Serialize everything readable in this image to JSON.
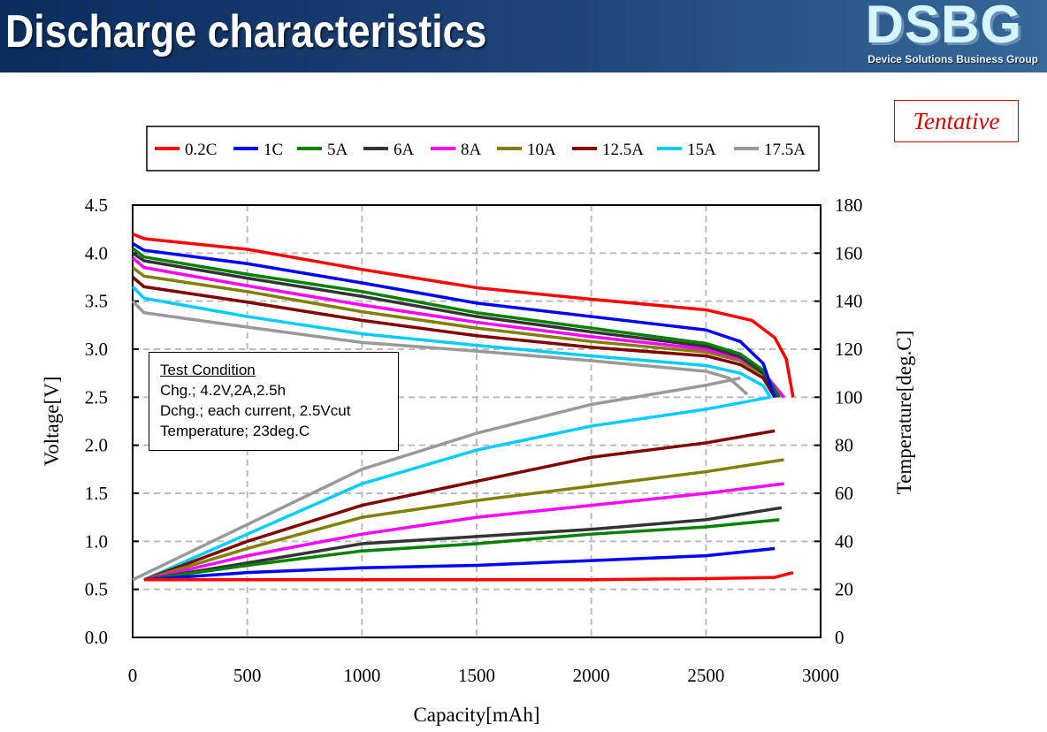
{
  "header": {
    "title": "Discharge characteristics",
    "logo": "DSBG",
    "logo_subtitle": "Device Solutions Business Group"
  },
  "badge": "Tentative",
  "test_condition": {
    "title": "Test Condition",
    "lines": [
      "Chg.; 4.2V,2A,2.5h",
      "Dchg.; each current, 2.5Vcut",
      "Temperature; 23deg.C"
    ]
  },
  "chart_data": {
    "type": "line",
    "xlabel": "Capacity[mAh]",
    "ylabel": "Voltage[V]",
    "y2label": "Temperature[deg.C]",
    "xlim": [
      0,
      3000
    ],
    "ylim": [
      0,
      4.5
    ],
    "y2lim": [
      0,
      180
    ],
    "xticks": [
      "0",
      "500",
      "1000",
      "1500",
      "2000",
      "2500",
      "3000"
    ],
    "yticks": [
      "0.0",
      "0.5",
      "1.0",
      "1.5",
      "2.0",
      "2.5",
      "3.0",
      "3.5",
      "4.0",
      "4.5"
    ],
    "y2ticks": [
      "0",
      "20",
      "40",
      "60",
      "80",
      "100",
      "120",
      "140",
      "160",
      "180"
    ],
    "grid": true,
    "legend_position": "top",
    "series": [
      {
        "name": "0.2C",
        "color": "#ff0000",
        "voltage": [
          [
            0,
            4.2
          ],
          [
            50,
            4.15
          ],
          [
            500,
            4.04
          ],
          [
            1000,
            3.83
          ],
          [
            1500,
            3.64
          ],
          [
            2000,
            3.52
          ],
          [
            2500,
            3.41
          ],
          [
            2700,
            3.3
          ],
          [
            2800,
            3.12
          ],
          [
            2850,
            2.9
          ],
          [
            2880,
            2.5
          ]
        ],
        "temperature": [
          [
            50,
            24
          ],
          [
            500,
            24
          ],
          [
            1000,
            24
          ],
          [
            2000,
            24
          ],
          [
            2500,
            24.5
          ],
          [
            2800,
            25
          ],
          [
            2880,
            27
          ]
        ]
      },
      {
        "name": "1C",
        "color": "#0000ff",
        "voltage": [
          [
            0,
            4.1
          ],
          [
            50,
            4.03
          ],
          [
            500,
            3.89
          ],
          [
            1000,
            3.69
          ],
          [
            1500,
            3.48
          ],
          [
            2000,
            3.34
          ],
          [
            2500,
            3.2
          ],
          [
            2650,
            3.08
          ],
          [
            2750,
            2.85
          ],
          [
            2800,
            2.5
          ]
        ],
        "temperature": [
          [
            50,
            24
          ],
          [
            500,
            27
          ],
          [
            1000,
            29
          ],
          [
            1500,
            30
          ],
          [
            2000,
            32
          ],
          [
            2500,
            34
          ],
          [
            2800,
            37
          ]
        ]
      },
      {
        "name": "5A",
        "color": "#008000",
        "voltage": [
          [
            0,
            4.05
          ],
          [
            50,
            3.96
          ],
          [
            500,
            3.78
          ],
          [
            1000,
            3.6
          ],
          [
            1500,
            3.38
          ],
          [
            2000,
            3.22
          ],
          [
            2500,
            3.06
          ],
          [
            2650,
            2.95
          ],
          [
            2750,
            2.78
          ],
          [
            2820,
            2.5
          ]
        ],
        "temperature": [
          [
            50,
            24
          ],
          [
            500,
            30
          ],
          [
            1000,
            36
          ],
          [
            1500,
            39
          ],
          [
            2000,
            43
          ],
          [
            2500,
            46
          ],
          [
            2820,
            49
          ]
        ]
      },
      {
        "name": "6A",
        "color": "#333333",
        "voltage": [
          [
            0,
            4.0
          ],
          [
            50,
            3.92
          ],
          [
            500,
            3.74
          ],
          [
            1000,
            3.55
          ],
          [
            1500,
            3.34
          ],
          [
            2000,
            3.18
          ],
          [
            2500,
            3.03
          ],
          [
            2650,
            2.92
          ],
          [
            2750,
            2.75
          ],
          [
            2810,
            2.5
          ]
        ],
        "temperature": [
          [
            50,
            24
          ],
          [
            500,
            31
          ],
          [
            1000,
            39
          ],
          [
            1500,
            42
          ],
          [
            2000,
            45
          ],
          [
            2500,
            49
          ],
          [
            2830,
            54
          ]
        ]
      },
      {
        "name": "8A",
        "color": "#ff00ff",
        "voltage": [
          [
            0,
            3.95
          ],
          [
            50,
            3.85
          ],
          [
            500,
            3.66
          ],
          [
            1000,
            3.46
          ],
          [
            1500,
            3.28
          ],
          [
            2000,
            3.13
          ],
          [
            2500,
            3.0
          ],
          [
            2650,
            2.9
          ],
          [
            2750,
            2.76
          ],
          [
            2840,
            2.5
          ]
        ],
        "temperature": [
          [
            50,
            24
          ],
          [
            500,
            34
          ],
          [
            1000,
            43
          ],
          [
            1500,
            50
          ],
          [
            2000,
            55
          ],
          [
            2500,
            60
          ],
          [
            2840,
            64
          ]
        ]
      },
      {
        "name": "10A",
        "color": "#808000",
        "voltage": [
          [
            0,
            3.85
          ],
          [
            50,
            3.76
          ],
          [
            500,
            3.6
          ],
          [
            1000,
            3.39
          ],
          [
            1500,
            3.22
          ],
          [
            2000,
            3.08
          ],
          [
            2500,
            2.97
          ],
          [
            2650,
            2.88
          ],
          [
            2750,
            2.74
          ],
          [
            2840,
            2.5
          ]
        ],
        "temperature": [
          [
            50,
            24
          ],
          [
            500,
            37
          ],
          [
            1000,
            50
          ],
          [
            1500,
            57
          ],
          [
            2000,
            63
          ],
          [
            2500,
            69
          ],
          [
            2840,
            74
          ]
        ]
      },
      {
        "name": "12.5A",
        "color": "#800000",
        "voltage": [
          [
            0,
            3.75
          ],
          [
            50,
            3.65
          ],
          [
            500,
            3.49
          ],
          [
            1000,
            3.3
          ],
          [
            1500,
            3.14
          ],
          [
            2000,
            3.02
          ],
          [
            2500,
            2.93
          ],
          [
            2650,
            2.84
          ],
          [
            2750,
            2.7
          ],
          [
            2800,
            2.5
          ]
        ],
        "temperature": [
          [
            50,
            24
          ],
          [
            500,
            40
          ],
          [
            1000,
            55
          ],
          [
            1500,
            65
          ],
          [
            2000,
            75
          ],
          [
            2500,
            81
          ],
          [
            2800,
            86
          ]
        ]
      },
      {
        "name": "15A",
        "color": "#00ccff",
        "voltage": [
          [
            0,
            3.65
          ],
          [
            50,
            3.53
          ],
          [
            500,
            3.34
          ],
          [
            1000,
            3.16
          ],
          [
            1500,
            3.04
          ],
          [
            2000,
            2.93
          ],
          [
            2500,
            2.83
          ],
          [
            2650,
            2.75
          ],
          [
            2750,
            2.62
          ],
          [
            2780,
            2.5
          ]
        ],
        "temperature": [
          [
            50,
            24
          ],
          [
            500,
            43
          ],
          [
            1000,
            64
          ],
          [
            1500,
            78
          ],
          [
            2000,
            88
          ],
          [
            2500,
            95
          ],
          [
            2780,
            100
          ]
        ]
      },
      {
        "name": "17.5A",
        "color": "#999999",
        "voltage": [
          [
            0,
            3.5
          ],
          [
            50,
            3.38
          ],
          [
            500,
            3.23
          ],
          [
            1000,
            3.07
          ],
          [
            1500,
            2.98
          ],
          [
            2000,
            2.88
          ],
          [
            2500,
            2.77
          ],
          [
            2600,
            2.7
          ],
          [
            2680,
            2.53
          ]
        ],
        "temperature": [
          [
            0,
            24
          ],
          [
            500,
            47
          ],
          [
            1000,
            70
          ],
          [
            1500,
            85
          ],
          [
            2000,
            97
          ],
          [
            2500,
            105
          ],
          [
            2650,
            108
          ]
        ]
      }
    ]
  }
}
